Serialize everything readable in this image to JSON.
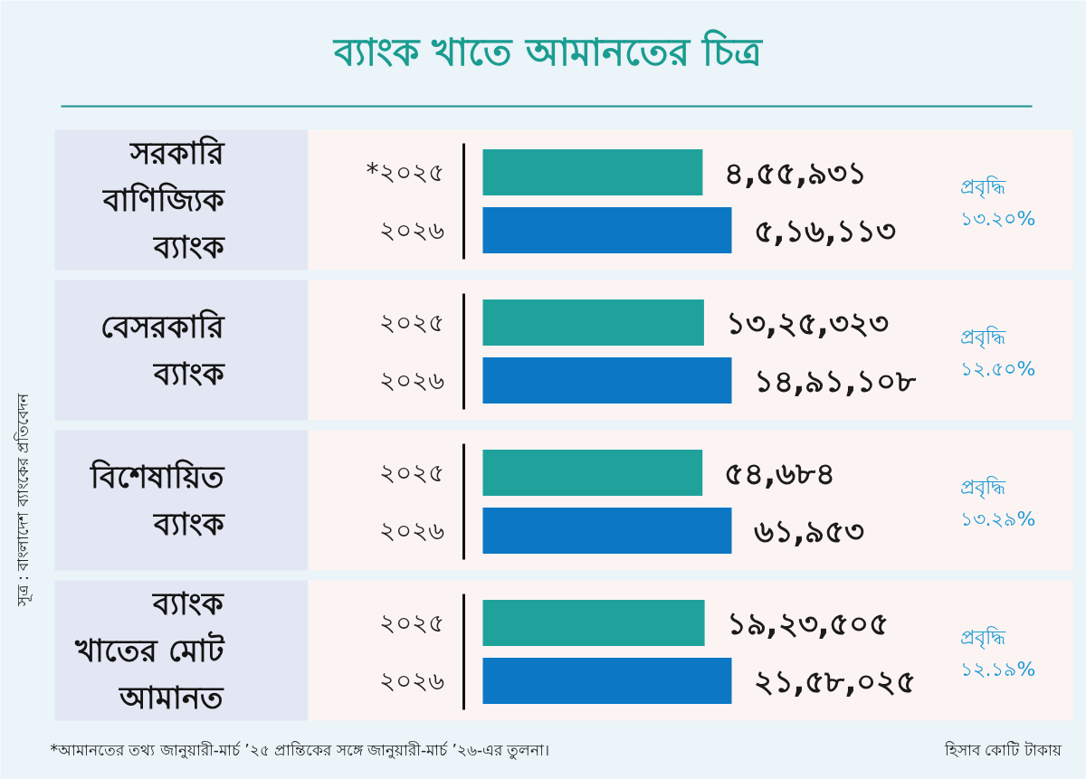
{
  "chart_data": [
    {
      "type": "bar",
      "orientation": "horizontal",
      "title": "ব্যাংক খাতে আমানতের চিত্র",
      "ylabel": "সরকারি\nবাণিজ্যিক\nব্যাংক",
      "categories": [
        "*২০২৫",
        "২০২৬"
      ],
      "values": [
        455931,
        516113
      ],
      "colors": [
        "#20a29c",
        "#0b77c5"
      ],
      "value_labels": [
        "৪,৫৫,৯৩১",
        "৫,১৬,১১৩"
      ],
      "annotations": [
        "প্রবৃদ্ধি\n১৩.২০%"
      ]
    },
    {
      "type": "bar",
      "orientation": "horizontal",
      "ylabel": "বেসরকারি\nব্যাংক",
      "categories": [
        "২০২৫",
        "২০২৬"
      ],
      "values": [
        1325323,
        1491108
      ],
      "colors": [
        "#20a29c",
        "#0b77c5"
      ],
      "value_labels": [
        "১৩,২৫,৩২৩",
        "১৪,৯১,১০৮"
      ],
      "annotations": [
        "প্রবৃদ্ধি\n১২.৫০%"
      ]
    },
    {
      "type": "bar",
      "orientation": "horizontal",
      "ylabel": "বিশেষায়িত\nব্যাংক",
      "categories": [
        "২০২৫",
        "২০২৬"
      ],
      "values": [
        54684,
        61953
      ],
      "colors": [
        "#20a29c",
        "#0b77c5"
      ],
      "value_labels": [
        "৫৪,৬৮৪",
        "৬১,৯৫৩"
      ],
      "annotations": [
        "প্রবৃদ্ধি\n১৩.২৯%"
      ]
    },
    {
      "type": "bar",
      "orientation": "horizontal",
      "ylabel": "ব্যাংক\nখাতের মোট\nআমানত",
      "categories": [
        "২০২৫",
        "২০২৬"
      ],
      "values": [
        1923505,
        2158025
      ],
      "colors": [
        "#20a29c",
        "#0b77c5"
      ],
      "value_labels": [
        "১৯,২৩,৫০৫",
        "২১,৫৮,০২৫"
      ],
      "annotations": [
        "প্রবৃদ্ধি\n১২.১৯%",
        "*আমানতের তথ্য জানুয়ারী-মার্চ ’২৫ প্রান্তিকের সঙ্গে জানুয়ারী-মার্চ ’২৬-এর তুলনা।",
        "হিসাব কোটি টাকায়",
        "সূত্র : বাংলাদেশ ব্যাংকের প্রতিবেদন"
      ]
    }
  ]
}
